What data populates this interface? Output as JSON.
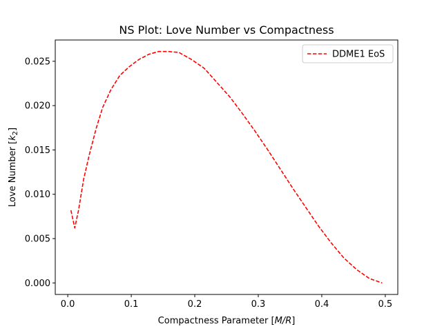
{
  "chart_data": {
    "type": "line",
    "title": "NS Plot: Love Number vs Compactness",
    "xlabel": {
      "prefix": "Compactness Parameter [",
      "var": "M/R",
      "suffix": "]"
    },
    "ylabel": {
      "prefix": "Love Number [",
      "var": "k",
      "sub": "2",
      "suffix": "]"
    },
    "xlim": [
      -0.0197,
      0.5197
    ],
    "ylim": [
      -0.0013,
      0.0274
    ],
    "xticks": [
      0,
      0.1,
      0.2,
      0.3,
      0.4,
      0.5
    ],
    "xtick_labels": [
      "0.0",
      "0.1",
      "0.2",
      "0.3",
      "0.4",
      "0.5"
    ],
    "yticks": [
      0,
      0.005,
      0.01,
      0.015,
      0.02,
      0.025
    ],
    "ytick_labels": [
      "0.000",
      "0.005",
      "0.010",
      "0.015",
      "0.020",
      "0.025"
    ],
    "grid": false,
    "legend_position": "upper right",
    "series": [
      {
        "name": "DDME1 EoS",
        "color": "#ff0000",
        "linestyle": "dashed",
        "x": [
          0.005,
          0.011,
          0.017,
          0.025,
          0.034,
          0.045,
          0.055,
          0.068,
          0.082,
          0.097,
          0.112,
          0.128,
          0.143,
          0.158,
          0.175,
          0.195,
          0.215,
          0.235,
          0.255,
          0.275,
          0.295,
          0.315,
          0.335,
          0.355,
          0.375,
          0.395,
          0.415,
          0.435,
          0.455,
          0.475,
          0.495
        ],
        "y": [
          0.0082,
          0.0062,
          0.0082,
          0.0117,
          0.0145,
          0.0175,
          0.0198,
          0.0218,
          0.0234,
          0.0244,
          0.0252,
          0.0258,
          0.0261,
          0.0261,
          0.026,
          0.0252,
          0.0242,
          0.0226,
          0.021,
          0.0191,
          0.0171,
          0.015,
          0.0128,
          0.0106,
          0.0085,
          0.0064,
          0.0045,
          0.0028,
          0.0015,
          0.0005,
          0.0
        ]
      }
    ]
  }
}
